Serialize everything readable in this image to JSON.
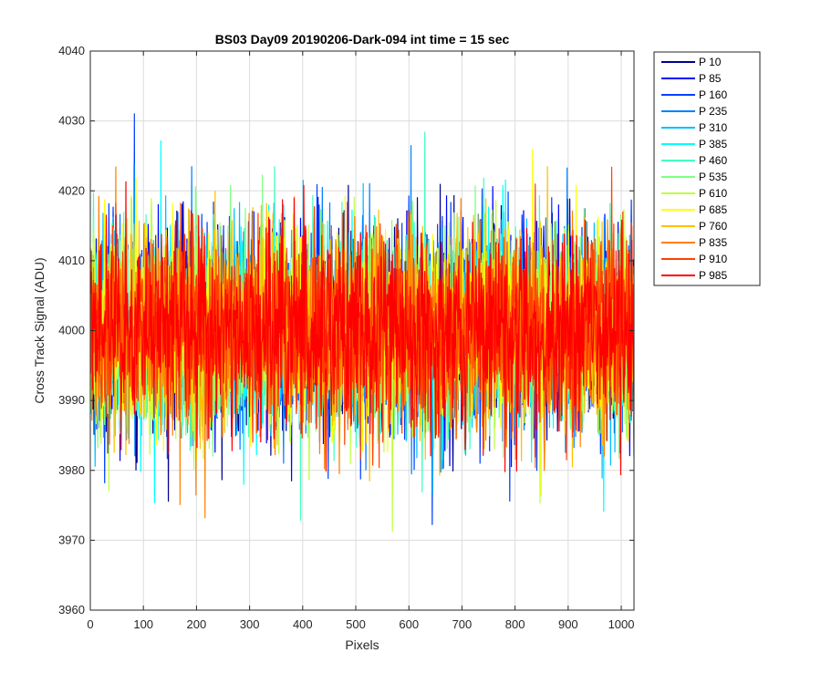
{
  "chart_data": {
    "type": "line",
    "title": "BS03 Day09 20190206-Dark-094 int time = 15 sec",
    "xlabel": "Pixels",
    "ylabel": "Cross Track Signal (ADU)",
    "xlim": [
      0,
      1024
    ],
    "ylim": [
      3960,
      4040
    ],
    "xticks": [
      0,
      100,
      200,
      300,
      400,
      500,
      600,
      700,
      800,
      900,
      1000
    ],
    "yticks": [
      3960,
      3970,
      3980,
      3990,
      4000,
      4010,
      4020,
      4030,
      4040
    ],
    "grid": true,
    "legend_position": "outside-top-right",
    "noise_model": {
      "mean": 4000,
      "std": 7,
      "min_observed": 3964,
      "max_observed": 4040
    },
    "series": [
      {
        "name": "P 10",
        "color": "#00008f"
      },
      {
        "name": "P 85",
        "color": "#0000ff"
      },
      {
        "name": "P 160",
        "color": "#0040ff"
      },
      {
        "name": "P 235",
        "color": "#0080ff"
      },
      {
        "name": "P 310",
        "color": "#00bfff"
      },
      {
        "name": "P 385",
        "color": "#00ffff"
      },
      {
        "name": "P 460",
        "color": "#40ffbf"
      },
      {
        "name": "P 535",
        "color": "#80ff80"
      },
      {
        "name": "P 610",
        "color": "#bfff40"
      },
      {
        "name": "P 685",
        "color": "#ffff00"
      },
      {
        "name": "P 760",
        "color": "#ffbf00"
      },
      {
        "name": "P 835",
        "color": "#ff8000"
      },
      {
        "name": "P 910",
        "color": "#ff4000"
      },
      {
        "name": "P 985",
        "color": "#ff0000"
      }
    ]
  }
}
